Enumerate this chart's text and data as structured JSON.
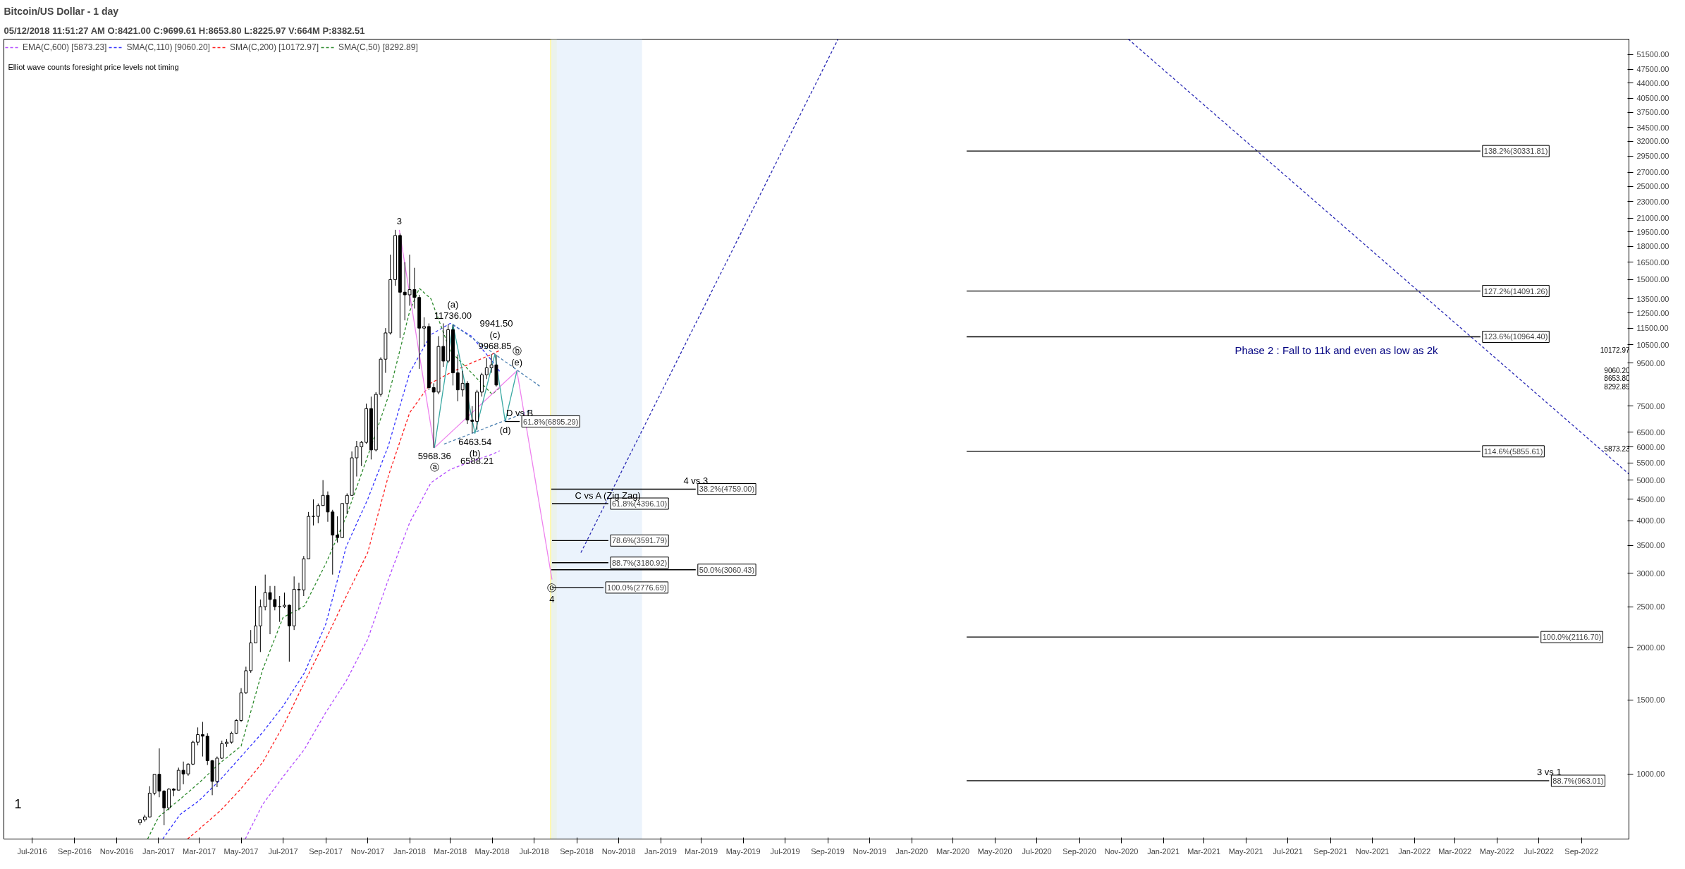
{
  "chart_data": {
    "type": "candlestick",
    "title": "Bitcoin/US Dollar - 1 day",
    "subtitle": "05/12/2018 11:51:27 AM  O:8421.00  C:9699.61  H:8653.80  L:8225.97  V:664M  P:8382.51",
    "log": true,
    "legend": "top left",
    "xlim": [
      "2016-05-21",
      "2022-11-09"
    ],
    "ylim": [
      700,
      56000
    ],
    "xticks": [
      {
        "value": "2016-07-01",
        "label": "Jul-2016"
      },
      {
        "value": "2016-09-01",
        "label": "Sep-2016"
      },
      {
        "value": "2016-11-01",
        "label": "Nov-2016"
      },
      {
        "value": "2017-01-01",
        "label": "Jan-2017"
      },
      {
        "value": "2017-03-01",
        "label": "Mar-2017"
      },
      {
        "value": "2017-05-01",
        "label": "May-2017"
      },
      {
        "value": "2017-07-01",
        "label": "Jul-2017"
      },
      {
        "value": "2017-09-01",
        "label": "Sep-2017"
      },
      {
        "value": "2017-11-01",
        "label": "Nov-2017"
      },
      {
        "value": "2018-01-01",
        "label": "Jan-2018"
      },
      {
        "value": "2018-03-01",
        "label": "Mar-2018"
      },
      {
        "value": "2018-05-01",
        "label": "May-2018"
      },
      {
        "value": "2018-07-01",
        "label": "Jul-2018"
      },
      {
        "value": "2018-09-01",
        "label": "Sep-2018"
      },
      {
        "value": "2018-11-01",
        "label": "Nov-2018"
      },
      {
        "value": "2019-01-01",
        "label": "Jan-2019"
      },
      {
        "value": "2019-03-01",
        "label": "Mar-2019"
      },
      {
        "value": "2019-05-01",
        "label": "May-2019"
      },
      {
        "value": "2019-07-01",
        "label": "Jul-2019"
      },
      {
        "value": "2019-09-01",
        "label": "Sep-2019"
      },
      {
        "value": "2019-11-01",
        "label": "Nov-2019"
      },
      {
        "value": "2020-01-01",
        "label": "Jan-2020"
      },
      {
        "value": "2020-03-01",
        "label": "Mar-2020"
      },
      {
        "value": "2020-05-01",
        "label": "May-2020"
      },
      {
        "value": "2020-07-01",
        "label": "Jul-2020"
      },
      {
        "value": "2020-09-01",
        "label": "Sep-2020"
      },
      {
        "value": "2020-11-01",
        "label": "Nov-2020"
      },
      {
        "value": "2021-01-01",
        "label": "Jan-2021"
      },
      {
        "value": "2021-03-01",
        "label": "Mar-2021"
      },
      {
        "value": "2021-05-01",
        "label": "May-2021"
      },
      {
        "value": "2021-07-01",
        "label": "Jul-2021"
      },
      {
        "value": "2021-09-01",
        "label": "Sep-2021"
      },
      {
        "value": "2021-11-01",
        "label": "Nov-2021"
      },
      {
        "value": "2022-01-01",
        "label": "Jan-2022"
      },
      {
        "value": "2022-03-01",
        "label": "Mar-2022"
      },
      {
        "value": "2022-05-01",
        "label": "May-2022"
      },
      {
        "value": "2022-07-01",
        "label": "Jul-2022"
      },
      {
        "value": "2022-09-01",
        "label": "Sep-2022"
      }
    ],
    "yticks": [
      {
        "value": 1000,
        "label": "1000.00"
      },
      {
        "value": 1500,
        "label": "1500.00"
      },
      {
        "value": 2000,
        "label": "2000.00"
      },
      {
        "value": 2500,
        "label": "2500.00"
      },
      {
        "value": 3000,
        "label": "3000.00"
      },
      {
        "value": 3500,
        "label": "3500.00"
      },
      {
        "value": 4000,
        "label": "4000.00"
      },
      {
        "value": 4500,
        "label": "4500.00"
      },
      {
        "value": 5000,
        "label": "5000.00"
      },
      {
        "value": 5500,
        "label": "5500.00"
      },
      {
        "value": 6000,
        "label": "6000.00"
      },
      {
        "value": 6500,
        "label": "6500.00"
      },
      {
        "value": 7500,
        "label": "7500.00"
      },
      {
        "value": 9500,
        "label": "9500.00"
      },
      {
        "value": 10500,
        "label": "10500.00"
      },
      {
        "value": 11500,
        "label": "11500.00"
      },
      {
        "value": 12500,
        "label": "12500.00"
      },
      {
        "value": 13500,
        "label": "13500.00"
      },
      {
        "value": 15000,
        "label": "15000.00"
      },
      {
        "value": 16500,
        "label": "16500.00"
      },
      {
        "value": 18000,
        "label": "18000.00"
      },
      {
        "value": 19500,
        "label": "19500.00"
      },
      {
        "value": 21000,
        "label": "21000.00"
      },
      {
        "value": 23000,
        "label": "23000.00"
      },
      {
        "value": 25000,
        "label": "25000.00"
      },
      {
        "value": 27000,
        "label": "27000.00"
      },
      {
        "value": 29500,
        "label": "29500.00"
      },
      {
        "value": 32000,
        "label": "32000.00"
      },
      {
        "value": 34500,
        "label": "34500.00"
      },
      {
        "value": 37500,
        "label": "37500.00"
      },
      {
        "value": 40500,
        "label": "40500.00"
      },
      {
        "value": 44000,
        "label": "44000.00"
      },
      {
        "value": 47500,
        "label": "47500.00"
      },
      {
        "value": 51500,
        "label": "51500.00"
      }
    ],
    "x": [
      "2016-12-05",
      "2016-12-12",
      "2016-12-19",
      "2016-12-26",
      "2017-01-02",
      "2017-01-09",
      "2017-01-16",
      "2017-01-23",
      "2017-01-30",
      "2017-02-06",
      "2017-02-13",
      "2017-02-20",
      "2017-02-27",
      "2017-03-06",
      "2017-03-13",
      "2017-03-20",
      "2017-03-27",
      "2017-04-03",
      "2017-04-10",
      "2017-04-17",
      "2017-04-24",
      "2017-05-01",
      "2017-05-08",
      "2017-05-15",
      "2017-05-22",
      "2017-05-29",
      "2017-06-05",
      "2017-06-12",
      "2017-06-19",
      "2017-06-26",
      "2017-07-03",
      "2017-07-10",
      "2017-07-17",
      "2017-07-24",
      "2017-07-31",
      "2017-08-07",
      "2017-08-14",
      "2017-08-21",
      "2017-08-28",
      "2017-09-04",
      "2017-09-11",
      "2017-09-18",
      "2017-09-25",
      "2017-10-02",
      "2017-10-09",
      "2017-10-16",
      "2017-10-23",
      "2017-10-30",
      "2017-11-06",
      "2017-11-13",
      "2017-11-20",
      "2017-11-27",
      "2017-12-04",
      "2017-12-11",
      "2017-12-18",
      "2017-12-25",
      "2018-01-01",
      "2018-01-08",
      "2018-01-15",
      "2018-01-22",
      "2018-01-29",
      "2018-02-05",
      "2018-02-12",
      "2018-02-19",
      "2018-02-26",
      "2018-03-05",
      "2018-03-12",
      "2018-03-19",
      "2018-03-26",
      "2018-04-02",
      "2018-04-09",
      "2018-04-16",
      "2018-04-23",
      "2018-04-30",
      "2018-05-07"
    ],
    "ohlc": [
      [
        765,
        780,
        755,
        778
      ],
      [
        778,
        800,
        770,
        790
      ],
      [
        790,
        935,
        788,
        900
      ],
      [
        900,
        1000,
        890,
        998
      ],
      [
        998,
        1150,
        880,
        910
      ],
      [
        910,
        915,
        755,
        830
      ],
      [
        830,
        925,
        820,
        920
      ],
      [
        920,
        925,
        885,
        915
      ],
      [
        915,
        1035,
        915,
        1020
      ],
      [
        1020,
        1070,
        945,
        1000
      ],
      [
        1000,
        1060,
        990,
        1055
      ],
      [
        1055,
        1200,
        1050,
        1190
      ],
      [
        1190,
        1290,
        1170,
        1240
      ],
      [
        1240,
        1330,
        1100,
        1230
      ],
      [
        1230,
        1250,
        1050,
        1075
      ],
      [
        1075,
        1080,
        890,
        960
      ],
      [
        960,
        1100,
        930,
        1090
      ],
      [
        1090,
        1200,
        1085,
        1180
      ],
      [
        1180,
        1210,
        1160,
        1190
      ],
      [
        1190,
        1260,
        1180,
        1250
      ],
      [
        1250,
        1350,
        1245,
        1340
      ],
      [
        1340,
        1600,
        1330,
        1560
      ],
      [
        1560,
        1800,
        1550,
        1760
      ],
      [
        1760,
        2200,
        1740,
        2050
      ],
      [
        2050,
        2800,
        2050,
        2250
      ],
      [
        2250,
        2600,
        1950,
        2500
      ],
      [
        2500,
        2980,
        2450,
        2700
      ],
      [
        2700,
        2800,
        2150,
        2600
      ],
      [
        2600,
        2800,
        2450,
        2500
      ],
      [
        2500,
        2650,
        2300,
        2500
      ],
      [
        2500,
        2700,
        2480,
        2520
      ],
      [
        2520,
        2530,
        1850,
        2250
      ],
      [
        2250,
        2950,
        2200,
        2750
      ],
      [
        2750,
        2850,
        2450,
        2740
      ],
      [
        2740,
        3300,
        2650,
        3250
      ],
      [
        3250,
        4200,
        3250,
        4100
      ],
      [
        4100,
        4500,
        3900,
        4100
      ],
      [
        4100,
        4400,
        3950,
        4350
      ],
      [
        4350,
        5000,
        4350,
        4600
      ],
      [
        4600,
        4700,
        3980,
        4200
      ],
      [
        4200,
        4250,
        2980,
        3700
      ],
      [
        3700,
        4100,
        3550,
        3650
      ],
      [
        3650,
        4400,
        3640,
        4400
      ],
      [
        4400,
        4650,
        4150,
        4600
      ],
      [
        4600,
        5850,
        4600,
        5650
      ],
      [
        5650,
        6200,
        5100,
        6000
      ],
      [
        6000,
        6200,
        5400,
        6150
      ],
      [
        6150,
        7600,
        6100,
        7400
      ],
      [
        7400,
        7900,
        5600,
        5900
      ],
      [
        5900,
        8100,
        5850,
        8000
      ],
      [
        8000,
        9800,
        7900,
        9700
      ],
      [
        9700,
        11500,
        9000,
        11200
      ],
      [
        11200,
        17200,
        11100,
        15000
      ],
      [
        15000,
        19700,
        14500,
        19100
      ],
      [
        19100,
        19300,
        10900,
        14000
      ],
      [
        14000,
        16500,
        12000,
        13800
      ],
      [
        13800,
        17200,
        13000,
        14200
      ],
      [
        14200,
        16000,
        12800,
        13600
      ],
      [
        13600,
        13800,
        9200,
        11500
      ],
      [
        11500,
        12200,
        10400,
        11600
      ],
      [
        11600,
        11800,
        8200,
        8300
      ],
      [
        8300,
        8500,
        5968.36,
        8100
      ],
      [
        8100,
        11000,
        8000,
        10400
      ],
      [
        10400,
        11800,
        9300,
        9600
      ],
      [
        9600,
        11736,
        9500,
        11400
      ],
      [
        11400,
        11700,
        8400,
        9000
      ],
      [
        9000,
        9950,
        7700,
        8200
      ],
      [
        8200,
        9100,
        7900,
        8500
      ],
      [
        8500,
        8600,
        6800,
        6950
      ],
      [
        6950,
        7500,
        6463.54,
        6900
      ],
      [
        6900,
        8200,
        6588.21,
        8100
      ],
      [
        8100,
        9000,
        7900,
        8900
      ],
      [
        8900,
        9750,
        8700,
        9250
      ],
      [
        9250,
        9968.85,
        9000,
        9400
      ],
      [
        9400,
        9941.5,
        8350,
        8420
      ]
    ],
    "series": [
      {
        "name": "EMA(C,600) [5873.23]",
        "type": "line",
        "line_style": "dashed",
        "color": "#b44dff",
        "x": [
          "2017-05-07",
          "2017-06-01",
          "2017-07-01",
          "2017-08-01",
          "2017-09-01",
          "2017-10-01",
          "2017-11-01",
          "2017-12-01",
          "2018-01-01",
          "2018-02-01",
          "2018-03-01",
          "2018-04-01",
          "2018-05-01",
          "2018-05-12"
        ],
        "values": [
          700,
          845,
          985,
          1144,
          1400,
          1667,
          2090,
          2900,
          3960,
          4930,
          5300,
          5540,
          5760,
          5873.23
        ]
      },
      {
        "name": "SMA(C,110) [9060.20]",
        "type": "line",
        "line_style": "dashed",
        "color": "#3333ff",
        "x": [
          "2017-01-07",
          "2017-02-01",
          "2017-03-01",
          "2017-04-01",
          "2017-05-01",
          "2017-06-01",
          "2017-07-01",
          "2017-08-01",
          "2017-09-01",
          "2017-10-01",
          "2017-11-01",
          "2017-12-01",
          "2018-01-01",
          "2018-02-01",
          "2018-03-01",
          "2018-04-01",
          "2018-05-01",
          "2018-05-12"
        ],
        "values": [
          700,
          800,
          864,
          970,
          1100,
          1254,
          1450,
          1740,
          2270,
          3480,
          4500,
          6030,
          9000,
          11100,
          11800,
          11000,
          9600,
          9060.2
        ]
      },
      {
        "name": "SMA(C,200) [10172.97]",
        "type": "line",
        "line_style": "dashed",
        "color": "#ff2020",
        "x": [
          "2017-02-12",
          "2017-03-01",
          "2017-04-01",
          "2017-05-01",
          "2017-06-01",
          "2017-07-01",
          "2017-08-01",
          "2017-09-01",
          "2017-10-01",
          "2017-11-01",
          "2017-12-01",
          "2018-01-01",
          "2018-02-01",
          "2018-03-01",
          "2018-04-01",
          "2018-05-01",
          "2018-05-12"
        ],
        "values": [
          700,
          739,
          818,
          923,
          1064,
          1300,
          1650,
          2090,
          2650,
          3360,
          5110,
          7230,
          8510,
          9000,
          9500,
          9970,
          10172.97
        ]
      },
      {
        "name": "SMA(C,50) [8292.89]",
        "type": "line",
        "line_style": "dashed",
        "color": "#2e8b2e",
        "x": [
          "2016-12-16",
          "2017-01-01",
          "2017-02-01",
          "2017-03-01",
          "2017-04-01",
          "2017-05-01",
          "2017-06-01",
          "2017-07-01",
          "2017-08-01",
          "2017-09-01",
          "2017-10-01",
          "2017-11-01",
          "2017-12-01",
          "2018-01-01",
          "2018-01-15",
          "2018-02-01",
          "2018-03-01",
          "2018-04-01",
          "2018-05-01",
          "2018-05-12"
        ],
        "values": [
          700,
          790,
          870,
          953,
          1064,
          1165,
          1766,
          2357,
          2510,
          3160,
          4100,
          5700,
          7900,
          12600,
          14300,
          13500,
          10150,
          9000,
          8000,
          8292.89
        ]
      },
      {
        "type": "line",
        "line_style": "solid",
        "color": "#ee82ee",
        "x": [
          "2017-12-17",
          "2018-02-06",
          "2018-06-06",
          "2018-07-27"
        ],
        "values": [
          19700,
          5968.36,
          9100,
          2900
        ]
      },
      {
        "type": "line",
        "line_style": "solid",
        "color": "#3aa9a3",
        "x": [
          "2018-02-06",
          "2018-03-05",
          "2018-04-06",
          "2018-05-05",
          "2018-05-20",
          "2018-06-06"
        ],
        "values": [
          5968.36,
          11736,
          6463.54,
          9968.85,
          6895.29,
          9100
        ]
      },
      {
        "type": "line",
        "line_style": "dashed",
        "color": "#4a7fb0",
        "x": [
          "2018-03-05",
          "2018-07-09"
        ],
        "values": [
          11736,
          8370
        ]
      },
      {
        "type": "line",
        "line_style": "dashed",
        "color": "#4a7fb0",
        "x": [
          "2018-02-20",
          "2018-06-28"
        ],
        "values": [
          6090,
          7340
        ]
      },
      {
        "type": "line",
        "line_style": "dashed",
        "color": "#2b2bb5",
        "x": [
          "2018-09-07",
          "2019-09-16"
        ],
        "values": [
          3360,
          56000
        ]
      },
      {
        "type": "line",
        "line_style": "dashed",
        "color": "#2b2bb5",
        "x": [
          "2020-11-11",
          "2022-11-09"
        ],
        "values": [
          56000,
          5170
        ]
      },
      {
        "type": "line",
        "line_style": "solid",
        "color": "#000000",
        "x": [
          "2018-05-20",
          "2018-06-10"
        ],
        "values": [
          6895.29,
          6895.29
        ],
        "value_labels": [
          null,
          "61.8%(6895.29)"
        ]
      },
      {
        "type": "line",
        "line_style": "solid",
        "color": "#000000",
        "x": [
          "2018-07-26",
          "2019-02-21"
        ],
        "values": [
          4759.0,
          4759.0
        ],
        "value_labels": [
          null,
          "38.2%(4759.00)"
        ]
      },
      {
        "type": "line",
        "line_style": "solid",
        "color": "#000000",
        "x": [
          "2018-07-27",
          "2018-10-17"
        ],
        "values": [
          4396.1,
          4396.1
        ],
        "value_labels": [
          null,
          "61.8%(4396.10)"
        ]
      },
      {
        "type": "line",
        "line_style": "solid",
        "color": "#000000",
        "x": [
          "2018-07-27",
          "2018-10-17"
        ],
        "values": [
          3591.79,
          3591.79
        ],
        "value_labels": [
          null,
          "78.6%(3591.79)"
        ]
      },
      {
        "type": "line",
        "line_style": "solid",
        "color": "#000000",
        "x": [
          "2018-07-27",
          "2018-10-17"
        ],
        "values": [
          3180.92,
          3180.92
        ],
        "value_labels": [
          null,
          "88.7%(3180.92)"
        ]
      },
      {
        "type": "line",
        "line_style": "solid",
        "color": "#000000",
        "x": [
          "2018-07-26",
          "2019-02-21"
        ],
        "values": [
          3060.43,
          3060.43
        ],
        "value_labels": [
          null,
          "50.0%(3060.43)"
        ]
      },
      {
        "type": "line",
        "line_style": "solid",
        "color": "#000000",
        "x": [
          "2018-07-27",
          "2018-10-10"
        ],
        "values": [
          2776.69,
          2776.69
        ],
        "value_labels": [
          null,
          "100.0%(2776.69)"
        ]
      },
      {
        "type": "line",
        "line_style": "solid",
        "color": "#000000",
        "x": [
          "2020-03-21",
          "2022-04-07"
        ],
        "values": [
          30331.81,
          30331.81
        ],
        "value_labels": [
          null,
          "138.2%(30331.81)"
        ]
      },
      {
        "type": "line",
        "line_style": "solid",
        "color": "#000000",
        "x": [
          "2020-03-21",
          "2022-04-07"
        ],
        "values": [
          14091.26,
          14091.26
        ],
        "value_labels": [
          null,
          "127.2%(14091.26)"
        ]
      },
      {
        "type": "line",
        "line_style": "solid",
        "color": "#000000",
        "x": [
          "2020-03-21",
          "2022-04-07"
        ],
        "values": [
          10964.4,
          10964.4
        ],
        "value_labels": [
          null,
          "123.6%(10964.40)"
        ]
      },
      {
        "type": "line",
        "line_style": "solid",
        "color": "#000000",
        "x": [
          "2020-03-21",
          "2022-04-07"
        ],
        "values": [
          5855.61,
          5855.61
        ],
        "value_labels": [
          null,
          "114.6%(5855.61)"
        ]
      },
      {
        "type": "line",
        "line_style": "solid",
        "color": "#000000",
        "x": [
          "2020-03-21",
          "2022-07-01"
        ],
        "values": [
          2116.7,
          2116.7
        ],
        "value_labels": [
          null,
          "100.0%(2116.70)"
        ]
      },
      {
        "type": "line",
        "line_style": "solid",
        "color": "#000000",
        "x": [
          "2020-03-21",
          "2022-07-16"
        ],
        "values": [
          963.01,
          963.01
        ],
        "value_labels": [
          null,
          "88.7%(963.01)"
        ]
      }
    ],
    "bands": [
      {
        "axis": "x",
        "from": "2018-07-24",
        "to": "2018-08-03",
        "color": "#fff59d"
      },
      {
        "axis": "x",
        "from": "2018-07-26",
        "to": "2018-12-05",
        "color": "#e6f0fb"
      }
    ],
    "annotations": [
      "Elliot wave counts foresight price levels not timing",
      "1",
      "Phase 2 : Fall to 11k and even as low as 2k",
      "10172.97",
      "9060.20",
      "8653.80",
      "8292.89",
      "5873.23",
      {
        "text": "3",
        "x": "2017-12-17",
        "y": 19700
      },
      {
        "text": "5968.36",
        "x": "2018-02-06",
        "y": 5968.36
      },
      {
        "text": "ⓐ",
        "x": "2018-02-06",
        "y": 5968.36
      },
      {
        "text": "11736.00",
        "x": "2018-03-05",
        "y": 11736
      },
      {
        "text": "(a)",
        "x": "2018-03-05",
        "y": 11736
      },
      {
        "text": "6463.54",
        "x": "2018-04-06",
        "y": 6463.54
      },
      {
        "text": "(b)",
        "x": "2018-04-06",
        "y": 6463.54
      },
      {
        "text": "6588.21",
        "x": "2018-04-09",
        "y": 6588.21
      },
      {
        "text": "9968.85",
        "x": "2018-05-05",
        "y": 9968.85
      },
      {
        "text": "(c)",
        "x": "2018-05-05",
        "y": 9968.85
      },
      {
        "text": "9941.50",
        "x": "2018-05-07",
        "y": 9941.5
      },
      {
        "text": "(d)",
        "x": "2018-05-20",
        "y": 6895.29
      },
      {
        "text": "(e)",
        "x": "2018-06-06",
        "y": 9100
      },
      {
        "text": "ⓑ",
        "x": "2018-06-06",
        "y": 9100
      },
      {
        "text": "D vs B",
        "x": "2018-06-10",
        "y": 6895.29
      },
      {
        "text": "ⓒ",
        "x": "2018-07-27",
        "y": 2900
      },
      {
        "text": "4",
        "x": "2018-07-27",
        "y": 2900
      },
      {
        "text": "C vs A (Zig Zag)",
        "x": "2018-10-17",
        "y": 4396.1
      },
      {
        "text": "4 vs 3",
        "x": "2019-02-21",
        "y": 4759.0
      },
      {
        "text": "3 vs 1",
        "x": "2022-07-16",
        "y": 963.01
      }
    ]
  }
}
